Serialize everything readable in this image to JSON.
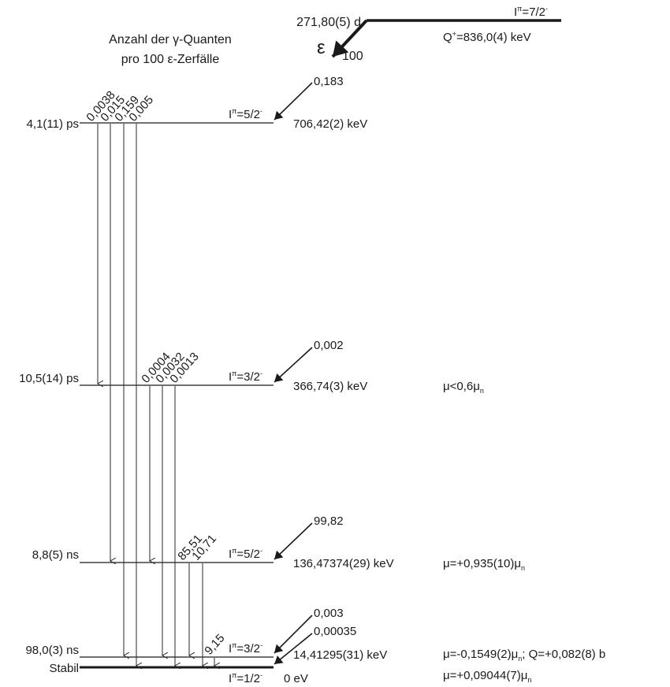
{
  "header": {
    "caption_line1": "Anzahl der γ-Quanten",
    "caption_line2": "pro 100 ε-Zerfälle"
  },
  "parent": {
    "halflife": "271,80(5) d",
    "spin_main": "I",
    "spin_sup": "π",
    "spin_value": "=7/2",
    "spin_parity": "-",
    "q_main": "Q",
    "q_sup": "+",
    "q_value": "=836,0(4) keV",
    "decay_symbol": "ε",
    "decay_intensity": "100"
  },
  "levels": [
    {
      "id": "l706",
      "lifetime": "4,1(11) ps",
      "spin_value": "=5/2",
      "spin_parity": "-",
      "energy": "706,42(2) keV",
      "feed": "0,183",
      "moment": "",
      "gamma_labels": [
        "0,0038",
        "0,015",
        "0,159",
        "0,005"
      ]
    },
    {
      "id": "l366",
      "lifetime": "10,5(14) ps",
      "spin_value": "=3/2",
      "spin_parity": "-",
      "energy": "366,74(3) keV",
      "feed": "0,002",
      "moment": "μ<0,6μ",
      "moment_sub": "n",
      "gamma_labels": [
        "0,0004",
        "0,0032",
        "0,0013"
      ]
    },
    {
      "id": "l136",
      "lifetime": "8,8(5) ns",
      "spin_value": "=5/2",
      "spin_parity": "-",
      "energy": "136,47374(29) keV",
      "feed": "99,82",
      "moment": "μ=+0,935(10)μ",
      "moment_sub": "n",
      "gamma_labels": [
        "85,51",
        "10,71"
      ]
    },
    {
      "id": "l14",
      "lifetime": "98,0(3) ns",
      "spin_value": "=3/2",
      "spin_parity": "-",
      "energy": "14,41295(31) keV",
      "feed": "0,003",
      "moment": "μ=-0,1549(2)μ",
      "moment_sub": "n",
      "moment_extra": "; Q=+0,082(8) b",
      "gamma_labels": [
        "9,15"
      ]
    },
    {
      "id": "l0",
      "lifetime": "Stabil",
      "spin_value": "=1/2",
      "spin_parity": "-",
      "energy": "0 eV",
      "feed": "0,00035",
      "moment": "μ=+0,09044(7)μ",
      "moment_sub": "n",
      "gamma_labels": []
    }
  ],
  "spin_symbol": "I",
  "spin_sup": "π"
}
